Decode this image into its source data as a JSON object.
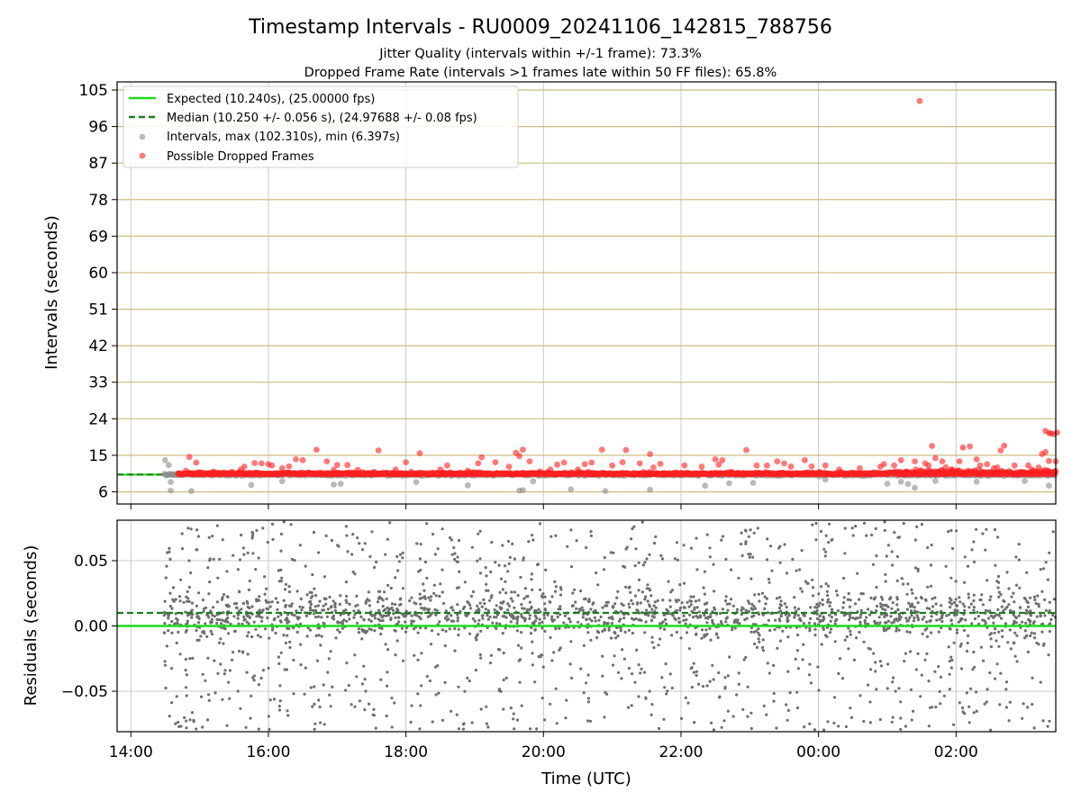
{
  "chart_data": [
    {
      "type": "scatter",
      "title": "Timestamp Intervals - RU0009_20241106_142815_788756",
      "subtitle_lines": [
        "Jitter Quality (intervals within +/-1 frame): 73.3%",
        "Dropped Frame Rate (intervals >1 frames late within 50 FF files): 65.8%"
      ],
      "xlabel": "",
      "ylabel": "Intervals (seconds)",
      "x_unit": "hours since 00:00 UTC of 2024-11-06",
      "xlim": [
        13.8,
        27.45
      ],
      "ylim": [
        3.0,
        107.0
      ],
      "yticks": [
        6,
        15,
        24,
        33,
        42,
        51,
        60,
        69,
        78,
        87,
        96,
        105
      ],
      "xticks": [
        14,
        16,
        18,
        20,
        22,
        24,
        26
      ],
      "x_tick_labels": [
        "14:00",
        "16:00",
        "18:00",
        "20:00",
        "22:00",
        "00:00",
        "02:00"
      ],
      "grid": true,
      "legend_position": "top-left",
      "expected_interval": 10.24,
      "median_interval": 10.25,
      "median_std": 0.056,
      "max_interval": 102.31,
      "min_interval": 6.397,
      "data_start": 14.48,
      "data_end": 27.45,
      "series": [
        {
          "name": "Expected (10.240s), (25.00000 fps)",
          "kind": "line",
          "value": 10.24,
          "color": "#1ddb1d"
        },
        {
          "name": "Median (10.250 +/- 0.056 s), (24.97688 +/- 0.08 fps)",
          "kind": "dashed-line",
          "value": 10.25,
          "color": "#1a7d1a"
        },
        {
          "name": "Intervals, max (102.310s), min (6.397s)",
          "kind": "scatter",
          "color": "#8c8c8c",
          "notable_points": [
            [
              14.5,
              13.8
            ],
            [
              14.55,
              12.6
            ],
            [
              14.58,
              8.4
            ],
            [
              14.58,
              6.3
            ],
            [
              14.88,
              6.2
            ],
            [
              15.75,
              7.7
            ],
            [
              16.2,
              8.6
            ],
            [
              16.95,
              7.8
            ],
            [
              17.05,
              8.0
            ],
            [
              18.15,
              8.4
            ],
            [
              18.9,
              7.6
            ],
            [
              19.55,
              10.1
            ],
            [
              19.65,
              6.3
            ],
            [
              19.7,
              6.4
            ],
            [
              19.85,
              8.6
            ],
            [
              20.4,
              6.6
            ],
            [
              20.9,
              6.2
            ],
            [
              21.55,
              6.5
            ],
            [
              22.35,
              7.5
            ],
            [
              22.7,
              8.1
            ],
            [
              23.05,
              8.2
            ],
            [
              24.1,
              9.0
            ],
            [
              25.0,
              8.0
            ],
            [
              25.2,
              8.5
            ],
            [
              25.3,
              7.9
            ],
            [
              25.4,
              7.0
            ],
            [
              25.7,
              8.7
            ],
            [
              26.3,
              8.5
            ],
            [
              27.0,
              8.7
            ],
            [
              27.35,
              7.5
            ]
          ]
        },
        {
          "name": "Possible Dropped Frames",
          "kind": "scatter",
          "color": "#ff2020",
          "notable_points": [
            [
              14.8,
              11.2
            ],
            [
              14.85,
              14.6
            ],
            [
              14.95,
              13.2
            ],
            [
              15.2,
              11.0
            ],
            [
              15.6,
              11.5
            ],
            [
              15.65,
              12.2
            ],
            [
              15.8,
              13.1
            ],
            [
              15.9,
              13.0
            ],
            [
              16.0,
              12.8
            ],
            [
              16.05,
              12.5
            ],
            [
              16.2,
              11.8
            ],
            [
              16.3,
              12.3
            ],
            [
              16.4,
              14.0
            ],
            [
              16.5,
              13.8
            ],
            [
              16.7,
              16.4
            ],
            [
              16.85,
              13.5
            ],
            [
              16.95,
              11.4
            ],
            [
              17.0,
              12.6
            ],
            [
              17.15,
              12.6
            ],
            [
              17.3,
              11.4
            ],
            [
              17.6,
              16.2
            ],
            [
              17.85,
              11.5
            ],
            [
              18.0,
              13.3
            ],
            [
              18.2,
              15.5
            ],
            [
              18.5,
              11.5
            ],
            [
              18.6,
              12.5
            ],
            [
              18.9,
              11.2
            ],
            [
              19.05,
              13.0
            ],
            [
              19.1,
              14.5
            ],
            [
              19.3,
              13.3
            ],
            [
              19.5,
              12.2
            ],
            [
              19.6,
              15.6
            ],
            [
              19.65,
              14.8
            ],
            [
              19.7,
              16.4
            ],
            [
              19.8,
              13.5
            ],
            [
              19.95,
              11.0
            ],
            [
              20.1,
              11.5
            ],
            [
              20.2,
              12.7
            ],
            [
              20.3,
              13.2
            ],
            [
              20.5,
              11.5
            ],
            [
              20.6,
              12.8
            ],
            [
              20.7,
              13.2
            ],
            [
              20.85,
              16.4
            ],
            [
              21.0,
              12.5
            ],
            [
              21.15,
              13.3
            ],
            [
              21.2,
              16.3
            ],
            [
              21.4,
              13.0
            ],
            [
              21.55,
              15.3
            ],
            [
              21.6,
              12.0
            ],
            [
              21.7,
              12.9
            ],
            [
              22.05,
              12.5
            ],
            [
              22.3,
              12.2
            ],
            [
              22.5,
              14.0
            ],
            [
              22.55,
              12.7
            ],
            [
              22.6,
              13.8
            ],
            [
              22.95,
              16.3
            ],
            [
              23.1,
              12.5
            ],
            [
              23.25,
              12.5
            ],
            [
              23.4,
              13.5
            ],
            [
              23.5,
              13.0
            ],
            [
              23.6,
              12.2
            ],
            [
              23.8,
              13.8
            ],
            [
              23.9,
              12.3
            ],
            [
              24.1,
              12.5
            ],
            [
              24.3,
              11.5
            ],
            [
              24.6,
              11.8
            ],
            [
              24.9,
              12.2
            ],
            [
              24.95,
              12.8
            ],
            [
              25.1,
              12.5
            ],
            [
              25.2,
              13.8
            ],
            [
              25.4,
              13.5
            ],
            [
              25.55,
              13.0
            ],
            [
              25.6,
              12.5
            ],
            [
              25.65,
              17.3
            ],
            [
              25.7,
              14.3
            ],
            [
              25.8,
              13.5
            ],
            [
              25.85,
              12.1
            ],
            [
              25.95,
              11.5
            ],
            [
              26.05,
              13.5
            ],
            [
              26.1,
              16.9
            ],
            [
              26.2,
              17.2
            ],
            [
              26.3,
              14.0
            ],
            [
              26.35,
              12.5
            ],
            [
              26.45,
              12.8
            ],
            [
              26.55,
              11.8
            ],
            [
              26.6,
              12.0
            ],
            [
              26.65,
              16.2
            ],
            [
              26.7,
              17.4
            ],
            [
              26.85,
              12.5
            ],
            [
              27.05,
              12.5
            ],
            [
              27.1,
              11.5
            ],
            [
              27.2,
              12.0
            ],
            [
              27.25,
              15.3
            ],
            [
              27.3,
              15.8
            ],
            [
              27.35,
              13.6
            ],
            [
              27.45,
              13.5
            ],
            [
              27.3,
              21.0
            ],
            [
              27.35,
              20.5
            ],
            [
              27.38,
              20.4
            ],
            [
              27.42,
              20.2
            ],
            [
              27.47,
              20.6
            ],
            [
              25.47,
              102.31
            ]
          ]
        }
      ]
    },
    {
      "type": "scatter",
      "xlabel": "Time (UTC)",
      "ylabel": "Residuals (seconds)",
      "x_unit": "hours since 00:00 UTC of 2024-11-06",
      "xlim": [
        13.8,
        27.45
      ],
      "ylim": [
        -0.081,
        0.081
      ],
      "yticks": [
        -0.05,
        0.0,
        0.05
      ],
      "ytick_labels": [
        "−0.05",
        "0.00",
        "0.05"
      ],
      "xticks": [
        14,
        16,
        18,
        20,
        22,
        24,
        26
      ],
      "x_tick_labels": [
        "14:00",
        "16:00",
        "18:00",
        "20:00",
        "22:00",
        "00:00",
        "02:00"
      ],
      "grid": true,
      "series": [
        {
          "kind": "line",
          "value": 0.0,
          "color": "#1ddb1d"
        },
        {
          "kind": "dashed-line",
          "value": 0.01,
          "color": "#1a7d1a"
        },
        {
          "kind": "scatter",
          "color": "#6e6e6e",
          "marker": "point",
          "x_range": [
            14.48,
            27.45
          ],
          "center": 0.008,
          "spread": 0.08
        }
      ]
    }
  ]
}
